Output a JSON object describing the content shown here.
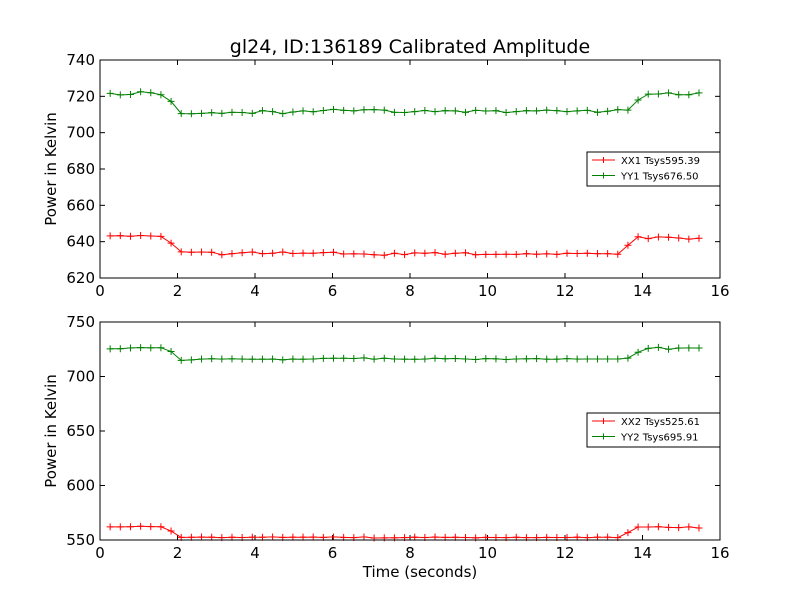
{
  "figure": {
    "title": "gl24, ID:136189 Calibrated Amplitude"
  },
  "chart_data": [
    {
      "type": "line",
      "title": "gl24, ID:136189 Calibrated Amplitude",
      "xlabel": "",
      "ylabel": "Power in Kelvin",
      "xlim": [
        0,
        16
      ],
      "ylim": [
        620,
        740
      ],
      "xticks": [
        0,
        2,
        4,
        6,
        8,
        10,
        12,
        14,
        16
      ],
      "yticks": [
        620,
        640,
        660,
        680,
        700,
        720,
        740
      ],
      "grid": false,
      "legend_position": "center-right",
      "x": [
        0.262,
        0.524,
        0.786,
        1.048,
        1.31,
        1.572,
        1.834,
        2.096,
        2.358,
        2.62,
        2.882,
        3.144,
        3.406,
        3.668,
        3.93,
        4.192,
        4.454,
        4.716,
        4.978,
        5.24,
        5.502,
        5.764,
        6.026,
        6.288,
        6.55,
        6.812,
        7.074,
        7.336,
        7.598,
        7.86,
        8.122,
        8.384,
        8.646,
        8.908,
        9.17,
        9.432,
        9.694,
        9.956,
        10.218,
        10.48,
        10.742,
        11.004,
        11.266,
        11.528,
        11.79,
        12.052,
        12.314,
        12.576,
        12.838,
        13.1,
        13.362,
        13.624,
        13.886,
        14.148,
        14.41,
        14.672,
        14.934,
        15.196,
        15.458
      ],
      "series": [
        {
          "name": "XX1 Tsys595.39",
          "color": "#ff0000",
          "values": [
            643.2,
            643.3,
            643.0,
            643.4,
            643.1,
            642.9,
            639.2,
            634.4,
            634.2,
            634.3,
            634.2,
            632.8,
            633.4,
            633.9,
            634.3,
            633.4,
            633.6,
            634.3,
            633.5,
            633.7,
            633.6,
            634.0,
            634.2,
            633.2,
            633.3,
            633.2,
            632.8,
            632.5,
            633.6,
            632.9,
            633.8,
            633.6,
            634.0,
            633.1,
            633.6,
            633.9,
            632.8,
            633.0,
            633.0,
            633.1,
            633.0,
            633.4,
            633.1,
            633.3,
            633.0,
            633.6,
            633.5,
            633.6,
            633.4,
            633.4,
            633.1,
            638.0,
            642.7,
            641.7,
            642.6,
            642.4,
            642.0,
            641.4,
            641.9
          ]
        },
        {
          "name": "YY1 Tsys676.50",
          "color": "#008000",
          "values": [
            721.6,
            720.8,
            721.0,
            722.5,
            722.0,
            720.9,
            717.2,
            710.5,
            710.4,
            710.6,
            711.0,
            710.6,
            711.2,
            711.1,
            710.6,
            712.1,
            711.6,
            710.5,
            711.4,
            712.0,
            711.5,
            712.2,
            712.8,
            712.3,
            712.0,
            712.6,
            712.7,
            712.4,
            711.2,
            711.1,
            711.6,
            712.2,
            711.6,
            712.1,
            712.0,
            711.2,
            712.3,
            711.9,
            712.1,
            711.1,
            711.6,
            712.1,
            712.0,
            712.4,
            712.1,
            711.6,
            712.0,
            712.3,
            711.2,
            711.8,
            712.7,
            712.4,
            718.0,
            721.2,
            721.3,
            721.9,
            720.9,
            720.9,
            721.9
          ]
        }
      ]
    },
    {
      "type": "line",
      "title": "",
      "xlabel": "Time (seconds)",
      "ylabel": "Power in Kelvin",
      "xlim": [
        0,
        16
      ],
      "ylim": [
        550,
        750
      ],
      "xticks": [
        0,
        2,
        4,
        6,
        8,
        10,
        12,
        14,
        16
      ],
      "yticks": [
        550,
        600,
        650,
        700,
        750
      ],
      "grid": false,
      "legend_position": "center-right",
      "x": [
        0.262,
        0.524,
        0.786,
        1.048,
        1.31,
        1.572,
        1.834,
        2.096,
        2.358,
        2.62,
        2.882,
        3.144,
        3.406,
        3.668,
        3.93,
        4.192,
        4.454,
        4.716,
        4.978,
        5.24,
        5.502,
        5.764,
        6.026,
        6.288,
        6.55,
        6.812,
        7.074,
        7.336,
        7.598,
        7.86,
        8.122,
        8.384,
        8.646,
        8.908,
        9.17,
        9.432,
        9.694,
        9.956,
        10.218,
        10.48,
        10.742,
        11.004,
        11.266,
        11.528,
        11.79,
        12.052,
        12.314,
        12.576,
        12.838,
        13.1,
        13.362,
        13.624,
        13.886,
        14.148,
        14.41,
        14.672,
        14.934,
        15.196,
        15.458
      ],
      "series": [
        {
          "name": "XX2 Tsys525.61",
          "color": "#ff0000",
          "values": [
            562.0,
            562.0,
            562.2,
            562.6,
            562.3,
            562.1,
            558.2,
            552.4,
            552.5,
            552.7,
            552.6,
            552.2,
            552.5,
            552.3,
            552.6,
            552.5,
            552.8,
            552.4,
            552.6,
            552.6,
            552.7,
            552.4,
            552.8,
            552.4,
            552.2,
            552.8,
            551.8,
            551.9,
            552.0,
            552.2,
            552.6,
            552.3,
            552.7,
            552.4,
            552.5,
            552.3,
            552.0,
            552.4,
            552.3,
            552.2,
            552.5,
            552.2,
            552.2,
            552.4,
            552.3,
            552.3,
            552.6,
            552.2,
            552.6,
            552.6,
            552.2,
            556.8,
            561.9,
            561.9,
            562.2,
            561.6,
            561.4,
            562.0,
            561.0
          ]
        },
        {
          "name": "YY2 Tsys695.91",
          "color": "#008000",
          "values": [
            725.4,
            725.5,
            726.2,
            726.5,
            726.3,
            726.4,
            722.9,
            714.8,
            715.2,
            716.0,
            716.3,
            716.0,
            716.2,
            716.0,
            715.9,
            715.9,
            716.0,
            715.3,
            716.0,
            715.9,
            716.1,
            716.6,
            716.8,
            716.8,
            716.5,
            717.1,
            715.9,
            716.8,
            716.1,
            715.9,
            715.8,
            716.0,
            716.7,
            716.3,
            716.5,
            716.1,
            715.6,
            716.4,
            716.2,
            715.6,
            716.1,
            716.2,
            716.4,
            715.9,
            715.9,
            716.4,
            716.0,
            716.1,
            716.1,
            716.1,
            716.1,
            716.9,
            722.3,
            725.8,
            726.7,
            725.0,
            726.1,
            726.2,
            726.1
          ]
        }
      ]
    }
  ]
}
